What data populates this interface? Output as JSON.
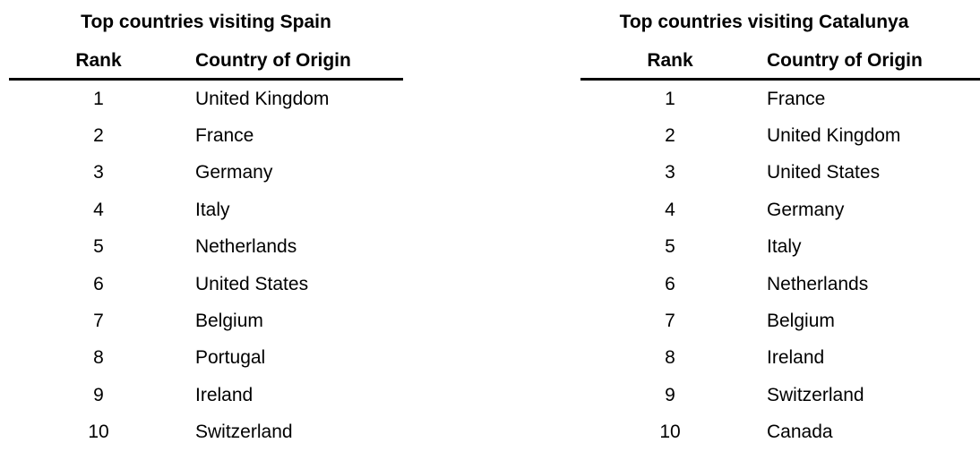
{
  "chart_data": [
    {
      "type": "table",
      "title": "Top countries visiting Spain",
      "columns": {
        "rank": "Rank",
        "country": "Country of Origin"
      },
      "rows": [
        {
          "rank": "1",
          "country": "United Kingdom"
        },
        {
          "rank": "2",
          "country": "France"
        },
        {
          "rank": "3",
          "country": "Germany"
        },
        {
          "rank": "4",
          "country": "Italy"
        },
        {
          "rank": "5",
          "country": "Netherlands"
        },
        {
          "rank": "6",
          "country": "United States"
        },
        {
          "rank": "7",
          "country": "Belgium"
        },
        {
          "rank": "8",
          "country": "Portugal"
        },
        {
          "rank": "9",
          "country": "Ireland"
        },
        {
          "rank": "10",
          "country": "Switzerland"
        }
      ]
    },
    {
      "type": "table",
      "title": "Top countries visiting Catalunya",
      "columns": {
        "rank": "Rank",
        "country": "Country of Origin"
      },
      "rows": [
        {
          "rank": "1",
          "country": "France"
        },
        {
          "rank": "2",
          "country": "United Kingdom"
        },
        {
          "rank": "3",
          "country": "United States"
        },
        {
          "rank": "4",
          "country": "Germany"
        },
        {
          "rank": "5",
          "country": "Italy"
        },
        {
          "rank": "6",
          "country": "Netherlands"
        },
        {
          "rank": "7",
          "country": "Belgium"
        },
        {
          "rank": "8",
          "country": "Ireland"
        },
        {
          "rank": "9",
          "country": "Switzerland"
        },
        {
          "rank": "10",
          "country": "Canada"
        }
      ]
    }
  ],
  "colors": {
    "text": "#000000",
    "background": "#ffffff",
    "rule": "#000000"
  }
}
